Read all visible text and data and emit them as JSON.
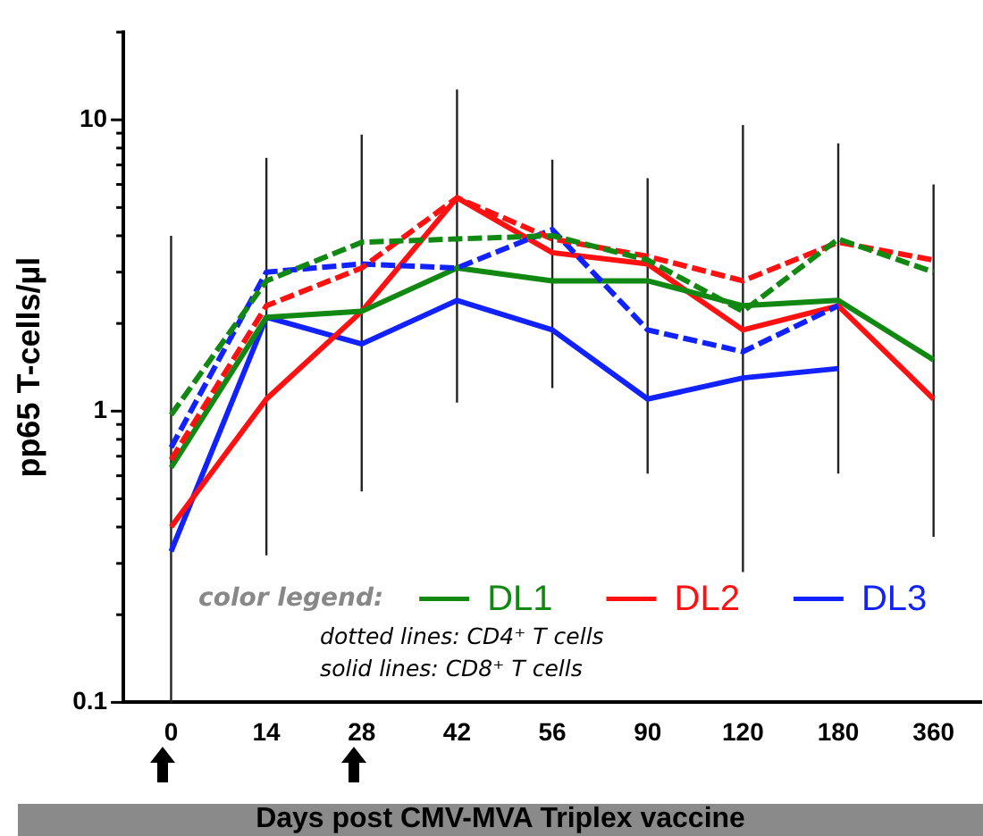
{
  "chart_data": {
    "type": "line",
    "ylabel": "pp65 T-cells/µl",
    "xlabel": "Days post CMV-MVA Triplex vaccine",
    "legend_title": "color legend:",
    "legend": "bottom",
    "log": true,
    "grid": false,
    "marker": "none",
    "categories": [
      "0",
      "14",
      "28",
      "42",
      "56",
      "90",
      "120",
      "180",
      "360"
    ],
    "ylim": [
      0.1,
      20
    ],
    "yticks": [
      0.1,
      {
        "value": 0.2,
        "label": null
      },
      {
        "value": 0.3,
        "label": null
      },
      {
        "value": 0.4,
        "label": null
      },
      {
        "value": 0.5,
        "label": null
      },
      {
        "value": 0.6,
        "label": null
      },
      {
        "value": 0.7,
        "label": null
      },
      {
        "value": 0.8,
        "label": null
      },
      {
        "value": 0.9,
        "label": null
      },
      1,
      {
        "value": 2,
        "label": null
      },
      {
        "value": 3,
        "label": null
      },
      {
        "value": 4,
        "label": null
      },
      {
        "value": 5,
        "label": null
      },
      {
        "value": 6,
        "label": null
      },
      {
        "value": 7,
        "label": null
      },
      {
        "value": 8,
        "label": null
      },
      {
        "value": 9,
        "label": null
      },
      10,
      {
        "value": 20,
        "label": null
      }
    ],
    "series": [
      {
        "color": "#118811",
        "line_style": "dashed",
        "values": [
          0.97,
          2.8,
          3.8,
          3.9,
          4.0,
          3.3,
          2.2,
          3.9,
          3.0
        ],
        "errors": [
          [
            0.1,
            4.0
          ],
          [
            0.32,
            7.4
          ],
          [
            0.53,
            8.9
          ],
          [
            1.07,
            12.7
          ],
          [
            1.2,
            7.3
          ],
          [
            0.61,
            6.3
          ],
          [
            0.28,
            9.6
          ],
          [
            0.61,
            8.3
          ],
          [
            0.37,
            6.0
          ]
        ]
      },
      {
        "color": "#ff1111",
        "line_style": "dashed",
        "values": [
          0.68,
          2.3,
          3.1,
          5.4,
          3.9,
          3.4,
          2.8,
          3.8,
          3.3
        ]
      },
      {
        "color": "#1122ff",
        "line_style": "dashed",
        "values": [
          0.75,
          3.0,
          3.2,
          3.1,
          4.2,
          1.9,
          1.6,
          2.3,
          null
        ]
      },
      {
        "name": "DL1",
        "color": "#118811",
        "line_style": "solid",
        "values": [
          0.64,
          2.1,
          2.2,
          3.1,
          2.8,
          2.8,
          2.3,
          2.4,
          1.5
        ]
      },
      {
        "name": "DL2",
        "color": "#ff1111",
        "line_style": "solid",
        "values": [
          0.4,
          1.1,
          2.2,
          5.4,
          3.5,
          3.2,
          1.9,
          2.3,
          1.1
        ]
      },
      {
        "name": "DL3",
        "color": "#1122ff",
        "line_style": "solid",
        "values": [
          0.33,
          2.1,
          1.7,
          2.4,
          1.9,
          1.1,
          1.3,
          1.4,
          null
        ]
      }
    ],
    "annotations": [
      "dotted lines: CD4⁺ T cells",
      "solid lines: CD8⁺ T cells"
    ]
  }
}
